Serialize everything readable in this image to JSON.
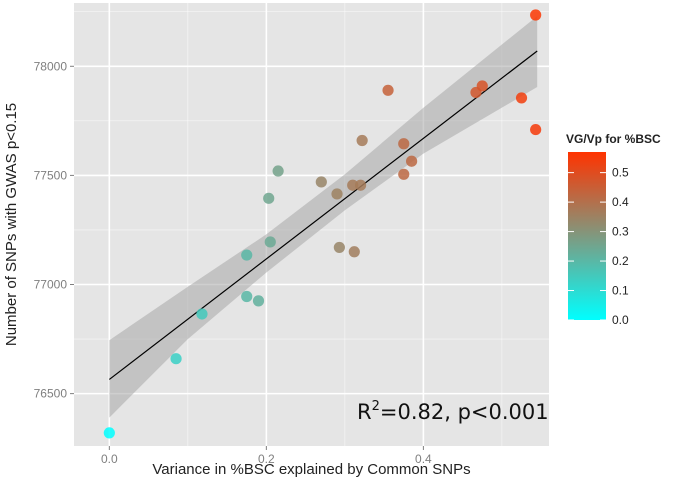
{
  "chart_data": {
    "type": "scatter",
    "xlabel": "Variance in %BSC explained by Common SNPs",
    "ylabel": "Number of SNPs with GWAS p<0.15",
    "xlim": [
      -0.045,
      0.56
    ],
    "ylim": [
      76260,
      78290
    ],
    "x_ticks": [
      0.0,
      0.2,
      0.4
    ],
    "x_tick_labels": [
      "0.0",
      "0.2",
      "0.4"
    ],
    "y_ticks": [
      76500,
      77000,
      77500,
      78000
    ],
    "y_tick_labels": [
      "76500",
      "77000",
      "77500",
      "78000"
    ],
    "grid": true,
    "background": "#e5e5e5",
    "annotation": {
      "base": "R",
      "sup": "2",
      "rest": "=0.82, p<0.001"
    },
    "fit_line": {
      "x": [
        0.0,
        0.545
      ],
      "y": [
        76565,
        78070
      ]
    },
    "confidence_band": {
      "x": [
        0.0,
        0.1,
        0.2,
        0.3,
        0.4,
        0.545
      ],
      "lower": [
        76390,
        76750,
        77055,
        77340,
        77600,
        77905
      ],
      "upper": [
        76745,
        76990,
        77230,
        77505,
        77810,
        78230
      ]
    },
    "legend": {
      "title": "VG/Vp for %BSC",
      "placement": "right",
      "range": [
        0.0,
        0.57
      ],
      "ticks": [
        0.0,
        0.1,
        0.2,
        0.3,
        0.4,
        0.5
      ],
      "tick_labels": [
        "0.0",
        "0.1",
        "0.2",
        "0.3",
        "0.4",
        "0.5"
      ],
      "color_low": "#00ffff",
      "color_high": "#ff3300"
    },
    "points": [
      {
        "x": 0.0,
        "y": 76320,
        "c": 0.0
      },
      {
        "x": 0.085,
        "y": 76660,
        "c": 0.13
      },
      {
        "x": 0.118,
        "y": 76865,
        "c": 0.15
      },
      {
        "x": 0.175,
        "y": 76945,
        "c": 0.2
      },
      {
        "x": 0.19,
        "y": 76925,
        "c": 0.22
      },
      {
        "x": 0.175,
        "y": 77135,
        "c": 0.2
      },
      {
        "x": 0.205,
        "y": 77195,
        "c": 0.24
      },
      {
        "x": 0.203,
        "y": 77395,
        "c": 0.25
      },
      {
        "x": 0.215,
        "y": 77520,
        "c": 0.26
      },
      {
        "x": 0.27,
        "y": 77470,
        "c": 0.34
      },
      {
        "x": 0.29,
        "y": 77415,
        "c": 0.35
      },
      {
        "x": 0.293,
        "y": 77170,
        "c": 0.34
      },
      {
        "x": 0.31,
        "y": 77455,
        "c": 0.37
      },
      {
        "x": 0.312,
        "y": 77150,
        "c": 0.36
      },
      {
        "x": 0.32,
        "y": 77455,
        "c": 0.37
      },
      {
        "x": 0.322,
        "y": 77660,
        "c": 0.37
      },
      {
        "x": 0.355,
        "y": 77890,
        "c": 0.44
      },
      {
        "x": 0.375,
        "y": 77645,
        "c": 0.42
      },
      {
        "x": 0.375,
        "y": 77505,
        "c": 0.42
      },
      {
        "x": 0.385,
        "y": 77565,
        "c": 0.42
      },
      {
        "x": 0.467,
        "y": 77880,
        "c": 0.47
      },
      {
        "x": 0.475,
        "y": 77910,
        "c": 0.48
      },
      {
        "x": 0.525,
        "y": 77855,
        "c": 0.54
      },
      {
        "x": 0.543,
        "y": 78235,
        "c": 0.56
      },
      {
        "x": 0.543,
        "y": 77710,
        "c": 0.55
      }
    ]
  }
}
